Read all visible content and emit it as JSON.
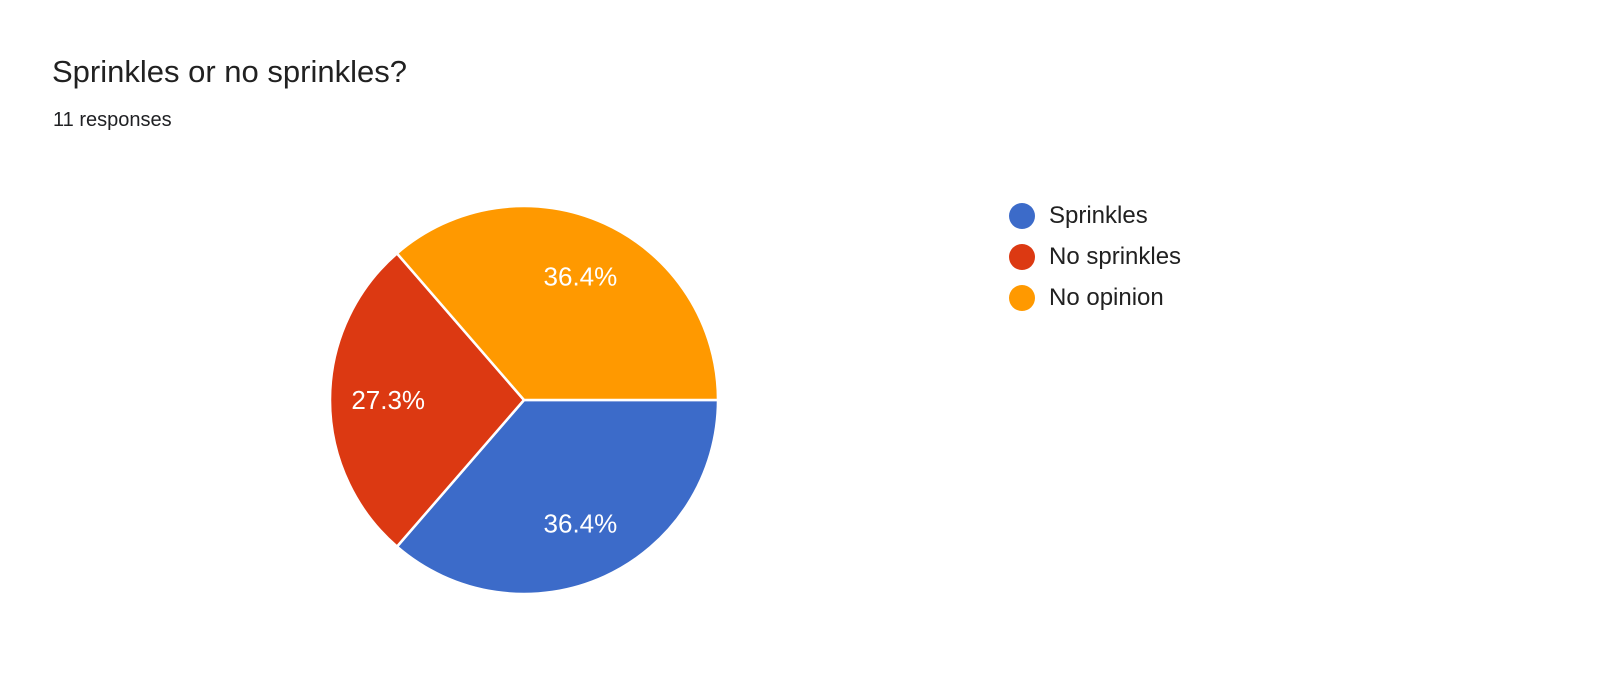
{
  "header": {
    "title": "Sprinkles or no sprinkles?",
    "subtitle": "11 responses"
  },
  "chart_data": {
    "type": "pie",
    "title": "Sprinkles or no sprinkles?",
    "response_count_text": "11 responses",
    "categories": [
      "Sprinkles",
      "No sprinkles",
      "No opinion"
    ],
    "values": [
      36.4,
      27.3,
      36.4
    ],
    "slice_labels": [
      "36.4%",
      "27.3%",
      "36.4%"
    ],
    "colors": [
      "#3C6BC9",
      "#DC3912",
      "#FF9900"
    ],
    "start_angle_deg": 0,
    "direction": "clockwise",
    "slice_separator_color": "#FFFFFF",
    "slice_label_color": "#FFFFFF",
    "legend_position": "right"
  },
  "legend": {
    "items": [
      {
        "label": "Sprinkles",
        "color": "#3C6BC9"
      },
      {
        "label": "No sprinkles",
        "color": "#DC3912"
      },
      {
        "label": "No opinion",
        "color": "#FF9900"
      }
    ]
  }
}
